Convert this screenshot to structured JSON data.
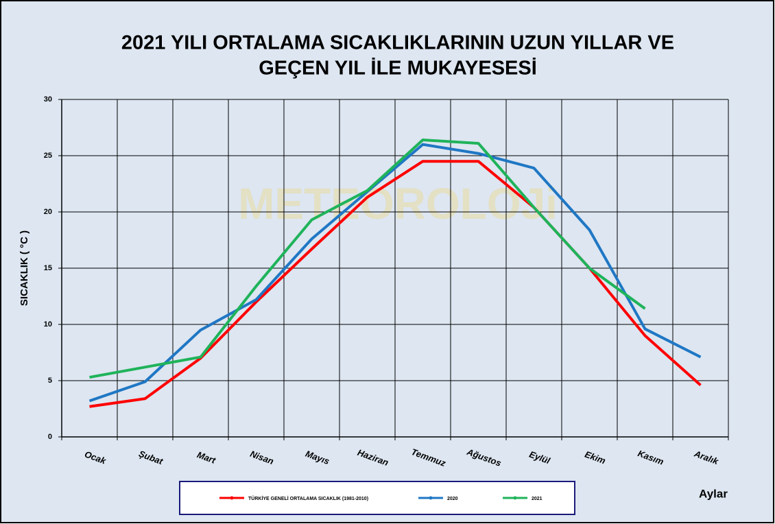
{
  "chart_data": {
    "type": "line",
    "title": "2021 YILI ORTALAMA SICAKLIKLARININ UZUN YILLAR VE",
    "subtitle": "GEÇEN  YIL İLE MUKAYESESİ",
    "watermark": "METEOROLOJi",
    "y_label": "SICAKLIK ( °C )",
    "x_label": "Aylar",
    "categories": [
      "Ocak",
      "Şubat",
      "Mart",
      "Nisan",
      "Mayıs",
      "Haziran",
      "Temmuz",
      "Ağustos",
      "Eylül",
      "Ekim",
      "Kasım",
      "Aralık"
    ],
    "series": [
      {
        "name": "TÜRKİYE GENELİ ORTALAMA  SICAKLIK (1981-2010)",
        "color": "#ff0000",
        "values": [
          2.7,
          3.4,
          7.0,
          12.0,
          16.7,
          21.3,
          24.5,
          24.5,
          20.4,
          15.0,
          9.0,
          4.6
        ]
      },
      {
        "name": "2020",
        "color": "#1f77c4",
        "values": [
          3.2,
          4.9,
          9.5,
          12.2,
          17.6,
          21.8,
          26.0,
          25.2,
          23.9,
          18.4,
          9.6,
          7.1
        ]
      },
      {
        "name": "2021",
        "color": "#1fb35a",
        "values": [
          5.3,
          6.2,
          7.1,
          13.4,
          19.3,
          21.9,
          26.4,
          26.1,
          20.4,
          15.0,
          11.4,
          null
        ]
      }
    ],
    "ylim": [
      0,
      30
    ],
    "yticks": [
      0,
      5,
      10,
      15,
      20,
      25,
      30
    ],
    "grid": true
  }
}
